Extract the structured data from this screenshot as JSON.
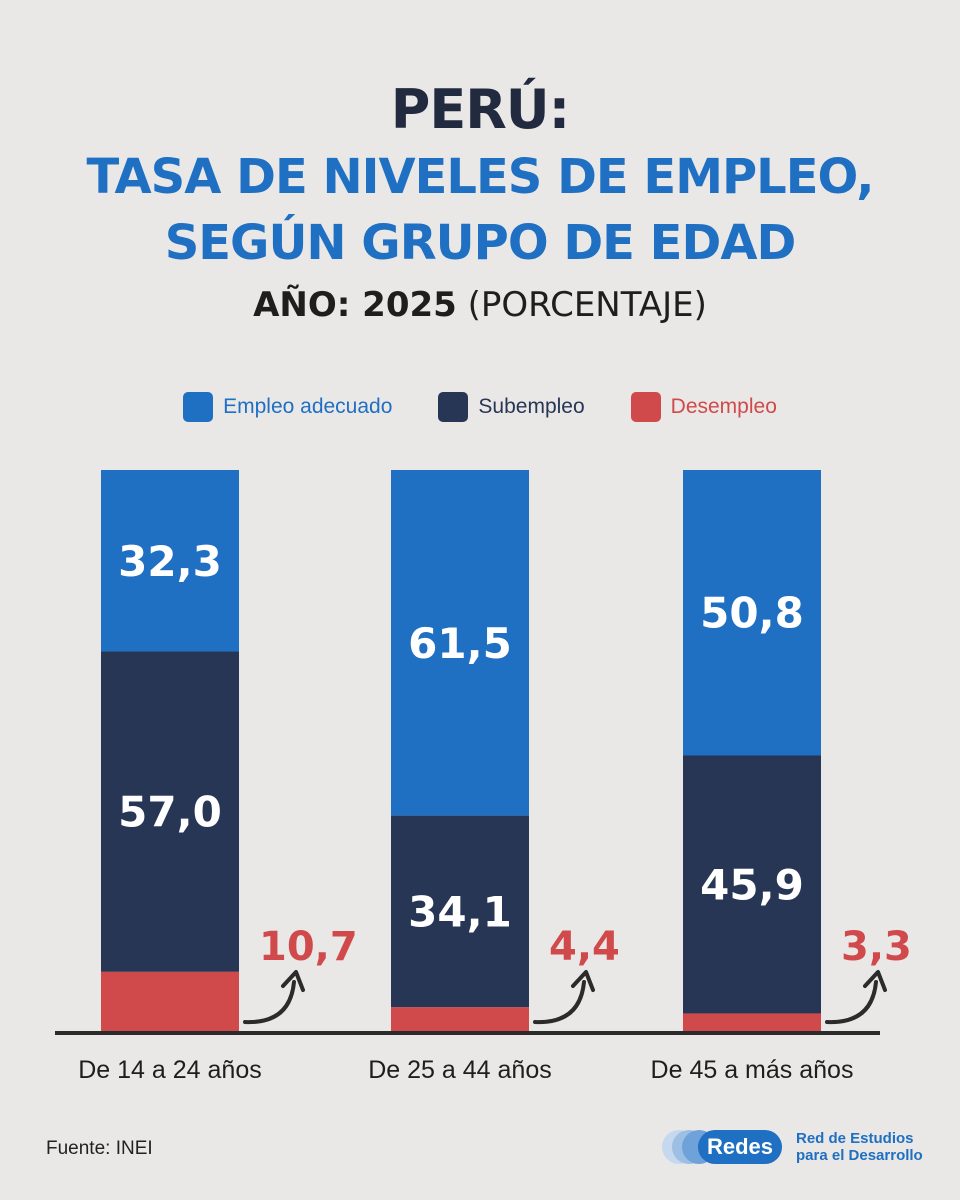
{
  "title": {
    "line1": "PERÚ:",
    "line2": "TASA DE NIVELES DE EMPLEO,",
    "line3": "SEGÚN GRUPO DE EDAD",
    "year_label": "AÑO: 2025",
    "unit_label": "(PORCENTAJE)"
  },
  "colors": {
    "adequate": "#1f6fc2",
    "underemployment": "#283655",
    "unemployment": "#d04a4b",
    "arrow": "#2b2b2b"
  },
  "chart_data": {
    "type": "bar",
    "stacked": true,
    "categories": [
      "De 14 a 24 años",
      "De 25 a 44 años",
      "De 45 a más años"
    ],
    "series": [
      {
        "name": "Empleo adecuado",
        "values": [
          32.3,
          61.5,
          50.8
        ],
        "labels": [
          "32,3",
          "61,5",
          "50,8"
        ]
      },
      {
        "name": "Subempleo",
        "values": [
          57.0,
          34.1,
          45.9
        ],
        "labels": [
          "57,0",
          "34,1",
          "45,9"
        ]
      },
      {
        "name": "Desempleo",
        "values": [
          10.7,
          4.4,
          3.3
        ],
        "labels": [
          "10,7",
          "4,4",
          "3,3"
        ]
      }
    ],
    "ylim": [
      0,
      100
    ],
    "grid": false,
    "legend_placement": "top-center"
  },
  "source": "Fuente: INEI",
  "logo": {
    "pill": "Redes",
    "line1": "Red de Estudios",
    "line2": "para el Desarrollo"
  }
}
